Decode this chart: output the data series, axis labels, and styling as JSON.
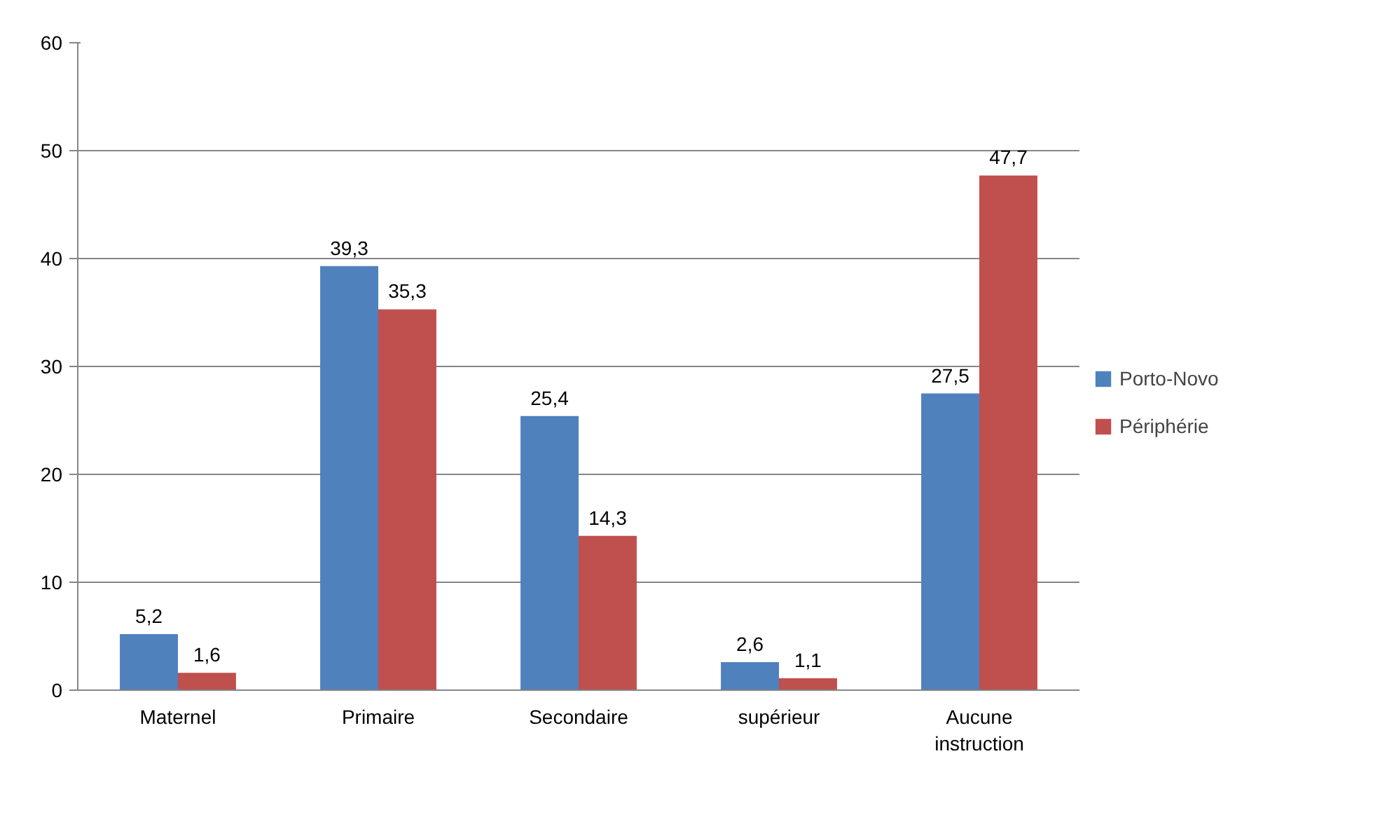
{
  "chart_data": {
    "type": "bar",
    "categories": [
      "Maternel",
      "Primaire",
      "Secondaire",
      "supérieur",
      "Aucune instruction"
    ],
    "series": [
      {
        "name": "Porto-Novo",
        "color": "#4f81bd",
        "values": [
          5.2,
          39.3,
          25.4,
          2.6,
          27.5
        ],
        "value_labels": [
          "5,2",
          "39,3",
          "25,4",
          "2,6",
          "27,5"
        ]
      },
      {
        "name": "Périphérie",
        "color": "#c0504d",
        "values": [
          1.6,
          35.3,
          14.3,
          1.1,
          47.7
        ],
        "value_labels": [
          "1,6",
          "35,3",
          "14,3",
          "1,1",
          "47,7"
        ]
      }
    ],
    "ylim": [
      0,
      60
    ],
    "yticks": [
      0,
      10,
      20,
      30,
      40,
      50,
      60
    ],
    "grid": "y",
    "legend": "right"
  }
}
